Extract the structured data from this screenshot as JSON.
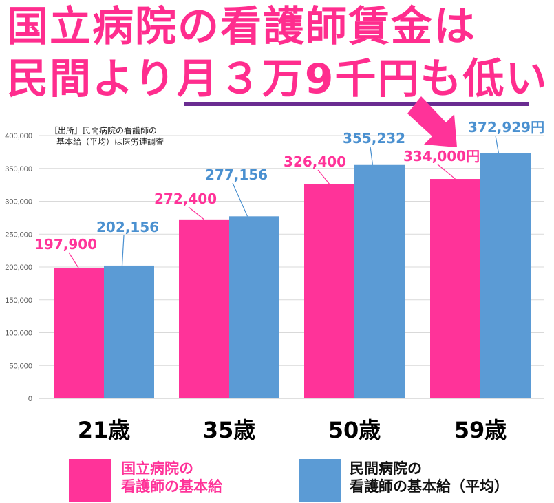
{
  "headline": {
    "line1": "国立病院の看護師賃金は",
    "line2": "民間より月３万9千円も低い"
  },
  "source_note": "［出所］民間病院の看護師の\n基本給（平均）は医労連調査",
  "colors": {
    "title": "#ff2d8e",
    "underline": "#6a2c91",
    "national": "#ff3399",
    "private": "#5b9bd5",
    "private_label": "#4a90d0",
    "axis_text": "#595959",
    "grid": "#d9d9d9"
  },
  "legend": {
    "national": "国立病院の\n看護師の基本給",
    "private": "民間病院の\n看護師の基本給（平均）"
  },
  "chart_data": {
    "type": "bar",
    "categories": [
      "21歳",
      "35歳",
      "50歳",
      "59歳"
    ],
    "series": [
      {
        "name": "国立病院の看護師の基本給",
        "values": [
          197900,
          272400,
          326400,
          334000
        ],
        "labels": [
          "197,900",
          "272,400",
          "326,400",
          "334,000円"
        ]
      },
      {
        "name": "民間病院の看護師の基本給（平均）",
        "values": [
          202156,
          277156,
          355232,
          372929
        ],
        "labels": [
          "202,156",
          "277,156",
          "355,232",
          "372,929円"
        ]
      }
    ],
    "ylim": [
      0,
      400000
    ],
    "yticks": [
      "0",
      "50,000",
      "100,000",
      "150,000",
      "200,000",
      "250,000",
      "300,000",
      "350,000",
      "400,000"
    ],
    "grid": true,
    "legend_position": "bottom",
    "annotation": "arrow pointing to 59歳 national bar"
  }
}
